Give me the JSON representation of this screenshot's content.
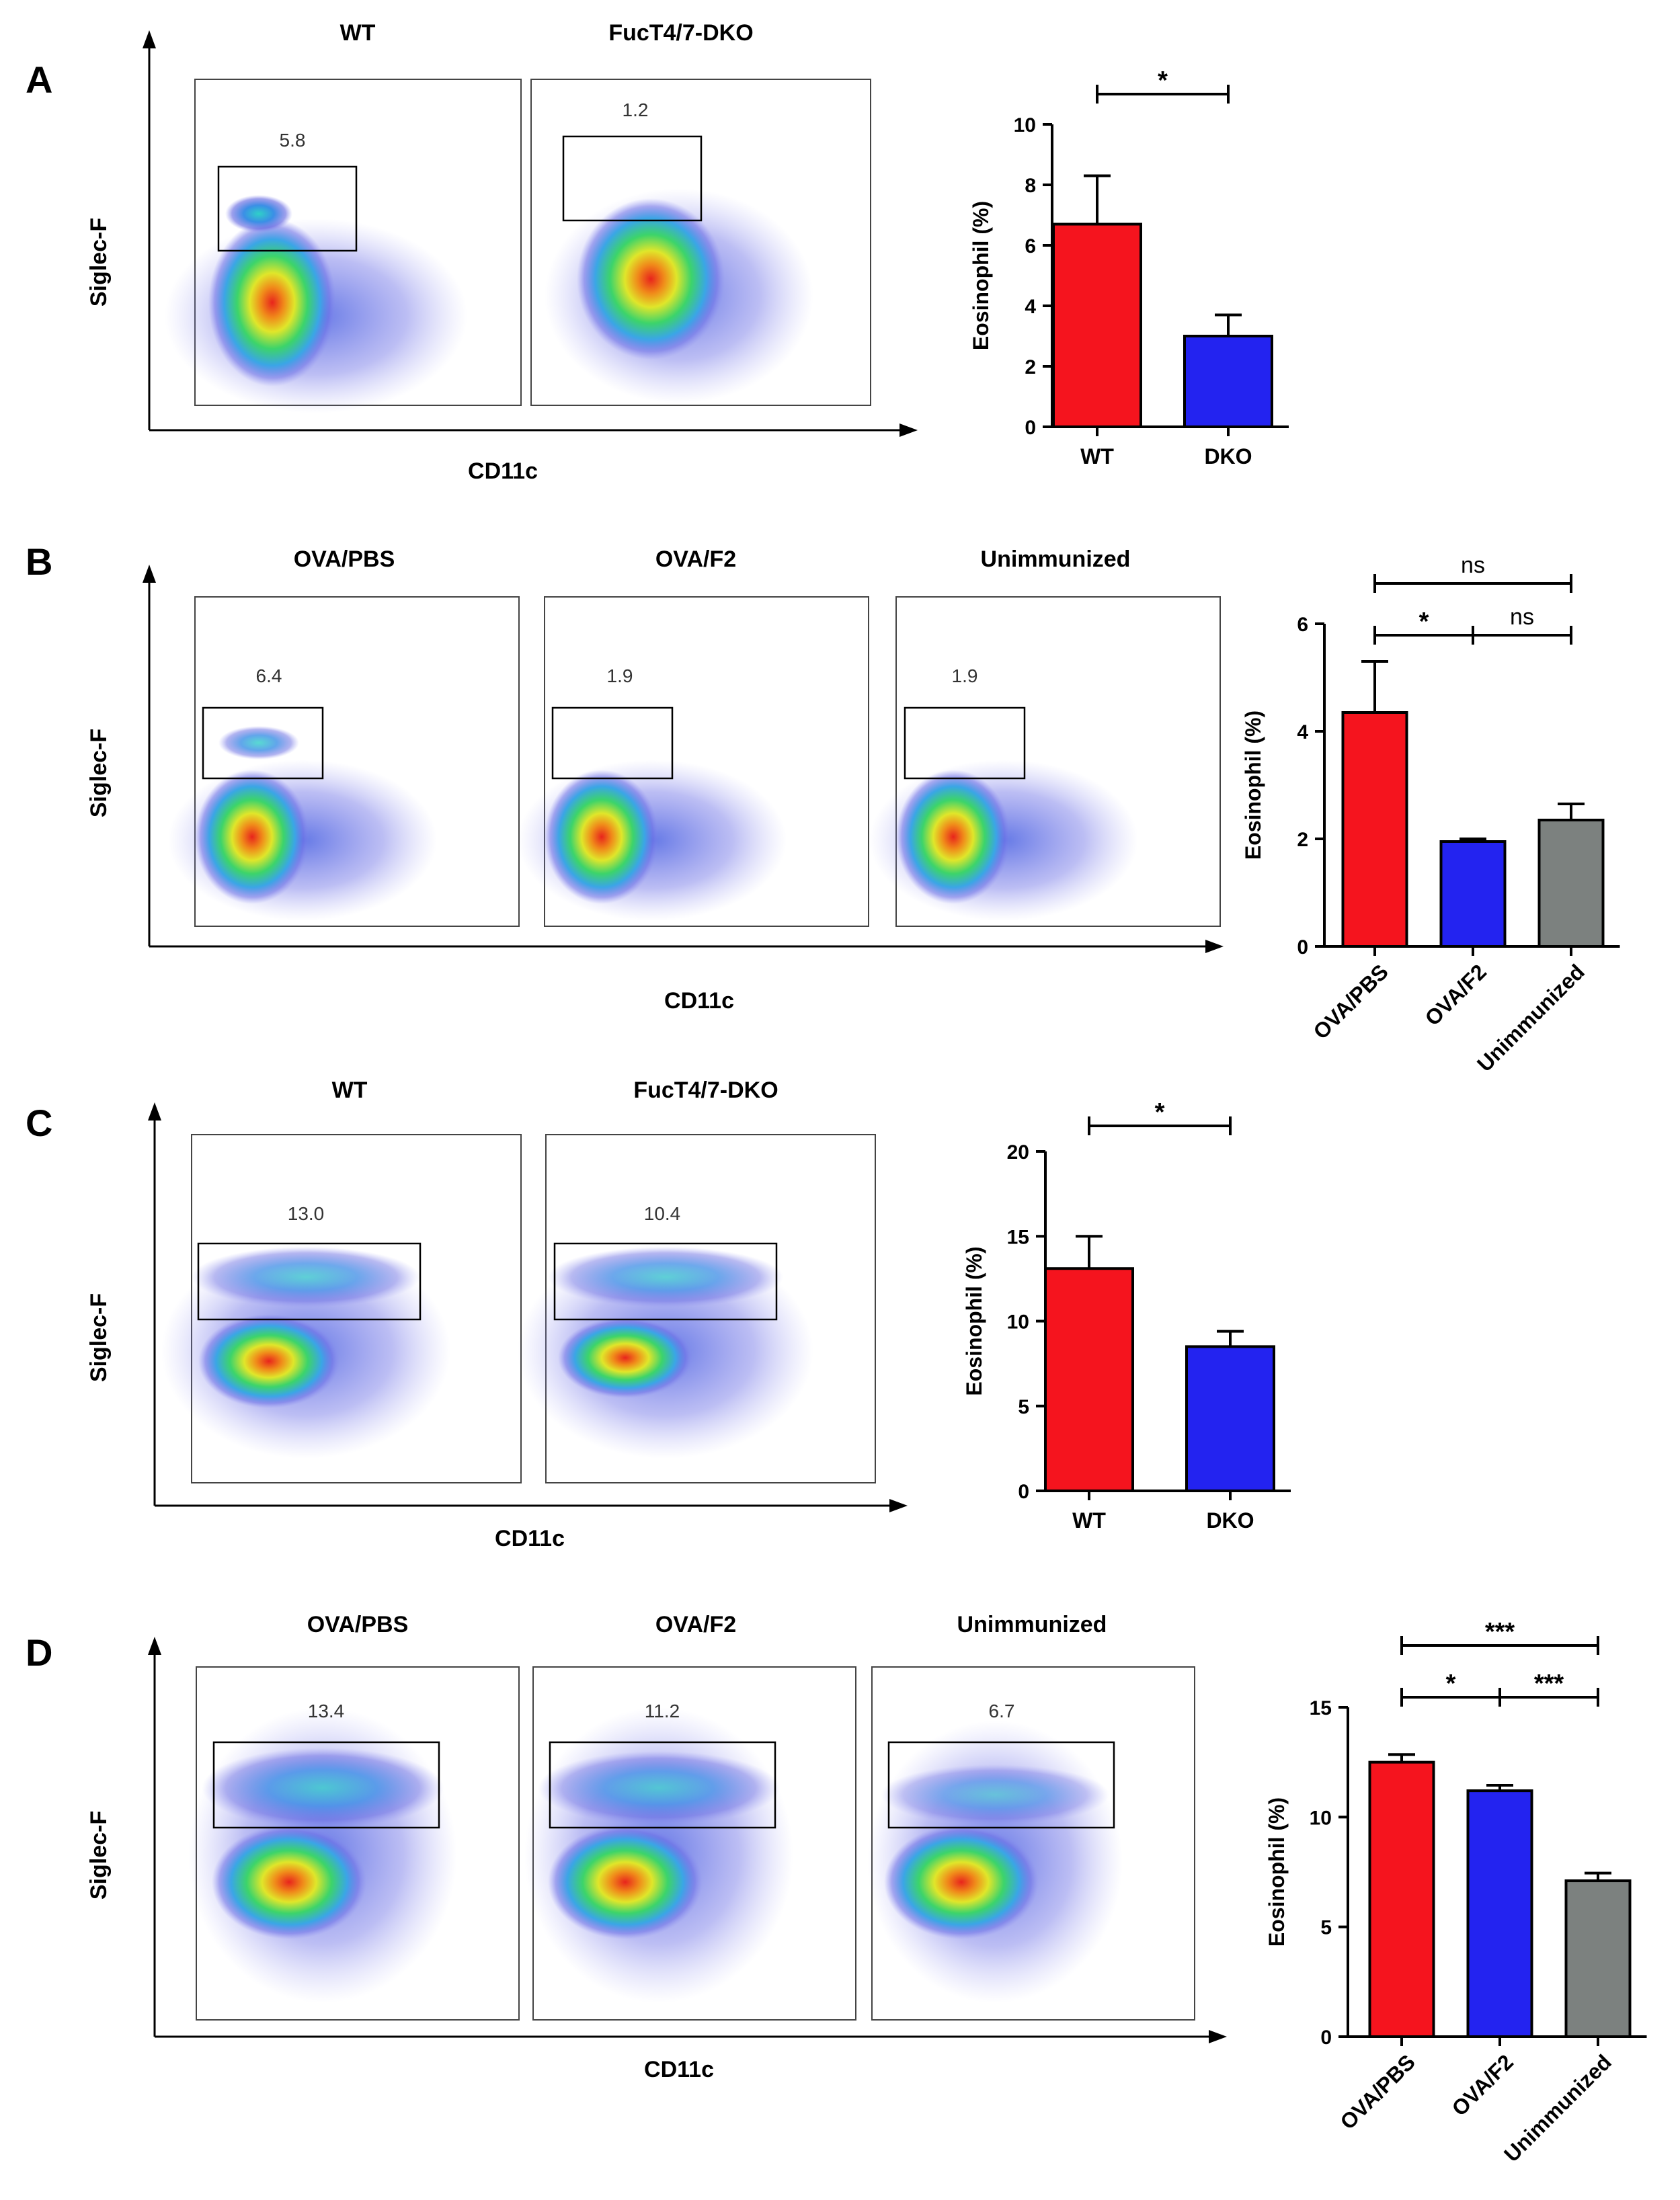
{
  "colors": {
    "red": "#f5141e",
    "blue": "#2323f0",
    "gray": "#7c817f"
  },
  "panels": [
    {
      "id": "A",
      "label": "A",
      "flow": {
        "ylabel": "Siglec-F",
        "xlabel": "CD11c",
        "gate": "short",
        "plots": [
          {
            "title": "WT",
            "gate_value": "5.8",
            "eos": 1.0
          },
          {
            "title": "FucT4/7-DKO",
            "gate_value": "1.2",
            "eos": 0.2
          }
        ]
      }
    },
    {
      "id": "B",
      "label": "B",
      "flow": {
        "ylabel": "Siglec-F",
        "xlabel": "CD11c",
        "gate": "short",
        "plots": [
          {
            "title": "OVA/PBS",
            "gate_value": "6.4",
            "eos": 1.0
          },
          {
            "title": "OVA/F2",
            "gate_value": "1.9",
            "eos": 0.35
          },
          {
            "title": "Unimmunized",
            "gate_value": "1.9",
            "eos": 0.35
          }
        ]
      }
    },
    {
      "id": "C",
      "label": "C",
      "flow": {
        "ylabel": "Siglec-F",
        "xlabel": "CD11c",
        "gate": "wide",
        "plots": [
          {
            "title": "WT",
            "gate_value": "13.0",
            "eos": 1.0
          },
          {
            "title": "FucT4/7-DKO",
            "gate_value": "10.4",
            "eos": 0.8
          }
        ]
      }
    },
    {
      "id": "D",
      "label": "D",
      "flow": {
        "ylabel": "Siglec-F",
        "xlabel": "CD11c",
        "gate": "wide",
        "plots": [
          {
            "title": "OVA/PBS",
            "gate_value": "13.4",
            "eos": 1.0
          },
          {
            "title": "OVA/F2",
            "gate_value": "11.2",
            "eos": 0.85
          },
          {
            "title": "Unimmunized",
            "gate_value": "6.7",
            "eos": 0.5
          }
        ]
      }
    }
  ],
  "chart_data": [
    {
      "panel": "A",
      "type": "bar",
      "ylabel": "Eosinophil (%)",
      "xlabel": "",
      "categories": [
        "WT",
        "DKO"
      ],
      "values": [
        6.7,
        3.0
      ],
      "errors": [
        1.6,
        0.7
      ],
      "ylim": [
        0,
        10
      ],
      "yticks": [
        0,
        2,
        4,
        6,
        8,
        10
      ],
      "colors": [
        "red",
        "blue"
      ],
      "rotated_labels": false,
      "significance": [
        {
          "from": 0,
          "to": 1,
          "label": "*"
        }
      ]
    },
    {
      "panel": "B",
      "type": "bar",
      "ylabel": "Eosinophil (%)",
      "xlabel": "",
      "categories": [
        "OVA/PBS",
        "OVA/F2",
        "Unimmunized"
      ],
      "values": [
        4.35,
        1.95,
        2.35
      ],
      "errors": [
        0.95,
        0.05,
        0.3
      ],
      "ylim": [
        0,
        6
      ],
      "yticks": [
        0,
        2,
        4,
        6
      ],
      "colors": [
        "red",
        "blue",
        "gray"
      ],
      "rotated_labels": true,
      "significance": [
        {
          "from": 0,
          "to": 2,
          "label": "ns"
        },
        {
          "from": 0,
          "to": 1,
          "label": "*"
        },
        {
          "from": 1,
          "to": 2,
          "label": "ns"
        }
      ]
    },
    {
      "panel": "C",
      "type": "bar",
      "ylabel": "Eosinophil (%)",
      "xlabel": "",
      "categories": [
        "WT",
        "DKO"
      ],
      "values": [
        13.1,
        8.5
      ],
      "errors": [
        1.9,
        0.9
      ],
      "ylim": [
        0,
        20
      ],
      "yticks": [
        0,
        5,
        10,
        15,
        20
      ],
      "colors": [
        "red",
        "blue"
      ],
      "rotated_labels": false,
      "significance": [
        {
          "from": 0,
          "to": 1,
          "label": "*"
        }
      ]
    },
    {
      "panel": "D",
      "type": "bar",
      "ylabel": "Eosinophil (%)",
      "xlabel": "",
      "categories": [
        "OVA/PBS",
        "OVA/F2",
        "Unimmunized"
      ],
      "values": [
        12.5,
        11.2,
        7.1
      ],
      "errors": [
        0.35,
        0.25,
        0.35
      ],
      "ylim": [
        0,
        15
      ],
      "yticks": [
        0,
        5,
        10,
        15
      ],
      "colors": [
        "red",
        "blue",
        "gray"
      ],
      "rotated_labels": true,
      "significance": [
        {
          "from": 0,
          "to": 2,
          "label": "***"
        },
        {
          "from": 0,
          "to": 1,
          "label": "*"
        },
        {
          "from": 1,
          "to": 2,
          "label": "***"
        }
      ]
    }
  ]
}
